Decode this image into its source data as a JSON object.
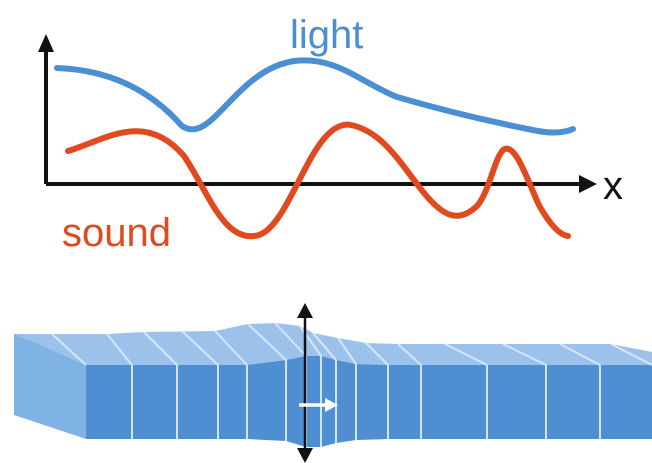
{
  "top_diagram": {
    "light_label": "light",
    "sound_label": "sound",
    "x_axis_label": "x",
    "colors": {
      "light": "#4a8fd3",
      "sound": "#e14a1f",
      "axis": "#111111"
    }
  },
  "bottom_diagram": {
    "colors": {
      "top_face": "#9cc2eb",
      "front_face": "#4f8fd1",
      "side_face": "#7fb2e5",
      "stripe": "#d8e9fb",
      "arrow": "#111111",
      "inner_arrow": "#ffffff"
    }
  }
}
